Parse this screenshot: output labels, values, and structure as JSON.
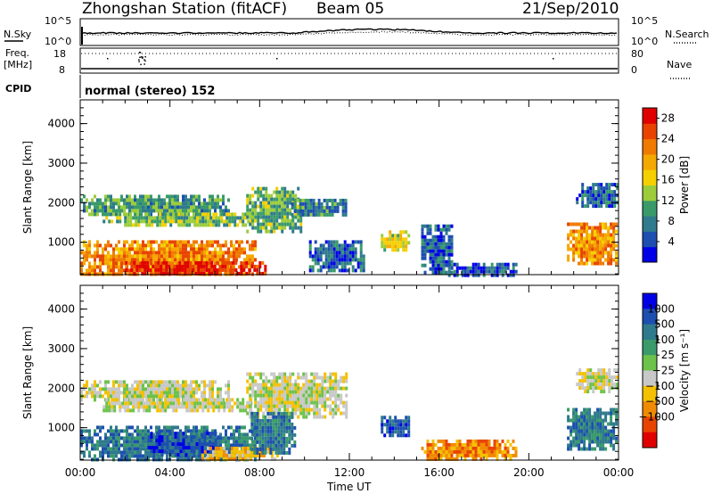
{
  "header": {
    "station_title": "Zhongshan Station (fitACF)",
    "beam": "Beam 05",
    "date": "21/Sep/2010"
  },
  "strip": {
    "nsky_label": "N.Sky",
    "nsearch_label": "N.Search",
    "nsky_ticks": [
      "10^5",
      "10^0"
    ],
    "nsearch_ticks": [
      "10^5",
      "10^0"
    ],
    "freq_label": "Freq.",
    "freq_unit": "[MHz]",
    "freq_ticks": [
      "18",
      "8"
    ],
    "nave_label": "Nave",
    "nave_ticks": [
      "80",
      "0"
    ],
    "cpid_label": "CPID",
    "cpid_text": "normal (stereo)  152"
  },
  "chart_data": [
    {
      "type": "heatmap",
      "name": "power",
      "ylabel": "Slant Range [km]",
      "xlabel": "",
      "x_ticks": [
        "00:00",
        "04:00",
        "08:00",
        "12:00",
        "16:00",
        "20:00",
        "00:00"
      ],
      "xlim_hours": [
        0,
        24
      ],
      "ylim_km": [
        180,
        4600
      ],
      "y_ticks": [
        1000,
        2000,
        3000,
        4000
      ],
      "colorbar": {
        "label": "Power [dB]",
        "ticks": [
          "4",
          "8",
          "12",
          "16",
          "20",
          "24",
          "28"
        ],
        "range": [
          0,
          30
        ],
        "colors": [
          "#0000e6",
          "#1d4fb0",
          "#2f7a8c",
          "#3a9a6a",
          "#9ccc3a",
          "#f5d000",
          "#f5a800",
          "#f07a00",
          "#e84400",
          "#e00000"
        ]
      },
      "regions": [
        {
          "t0": 0.0,
          "t1": 6.6,
          "r0": 1700,
          "r1": 2200,
          "level": 10
        },
        {
          "t0": 1.0,
          "t1": 7.6,
          "r0": 1450,
          "r1": 1750,
          "level": 13
        },
        {
          "t0": 0.0,
          "t1": 7.8,
          "r0": 200,
          "r1": 1050,
          "level": 22
        },
        {
          "t0": 2.0,
          "t1": 8.2,
          "r0": 200,
          "r1": 520,
          "level": 27
        },
        {
          "t0": 7.4,
          "t1": 9.9,
          "r0": 1300,
          "r1": 2400,
          "level": 11
        },
        {
          "t0": 9.4,
          "t1": 11.9,
          "r0": 1700,
          "r1": 2100,
          "level": 8
        },
        {
          "t0": 10.2,
          "t1": 12.7,
          "r0": 300,
          "r1": 1050,
          "level": 6
        },
        {
          "t0": 13.4,
          "t1": 14.7,
          "r0": 800,
          "r1": 1300,
          "level": 15
        },
        {
          "t0": 15.2,
          "t1": 16.6,
          "r0": 200,
          "r1": 1450,
          "level": 6
        },
        {
          "t0": 16.4,
          "t1": 19.4,
          "r0": 200,
          "r1": 480,
          "level": 5
        },
        {
          "t0": 21.7,
          "t1": 23.9,
          "r0": 500,
          "r1": 1500,
          "level": 21
        },
        {
          "t0": 22.1,
          "t1": 23.9,
          "r0": 1900,
          "r1": 2500,
          "level": 6
        }
      ]
    },
    {
      "type": "heatmap",
      "name": "velocity",
      "ylabel": "Slant Range [km]",
      "xlabel": "Time UT",
      "x_ticks": [
        "00:00",
        "04:00",
        "08:00",
        "12:00",
        "16:00",
        "20:00",
        "00:00"
      ],
      "xlim_hours": [
        0,
        24
      ],
      "ylim_km": [
        180,
        4600
      ],
      "y_ticks": [
        1000,
        2000,
        3000,
        4000
      ],
      "colorbar": {
        "label": "Velocity [m s⁻¹]",
        "ticks": [
          "1000",
          "500",
          "100",
          "25",
          "−25",
          "−100",
          "−500",
          "−1000"
        ],
        "colors": [
          "#0000e6",
          "#1d4fb0",
          "#2f7a8c",
          "#3a9a6a",
          "#6cc24a",
          "#c8c8c8",
          "#f5c000",
          "#f08a00",
          "#e84400",
          "#e00000"
        ]
      },
      "regions": [
        {
          "t0": 0.0,
          "t1": 6.6,
          "r0": 1700,
          "r1": 2200,
          "level": 5
        },
        {
          "t0": 1.0,
          "t1": 7.6,
          "r0": 1450,
          "r1": 1750,
          "level": 5
        },
        {
          "t0": 0.0,
          "t1": 7.8,
          "r0": 200,
          "r1": 1050,
          "level": 2
        },
        {
          "t0": 3.0,
          "t1": 6.2,
          "r0": 300,
          "r1": 900,
          "level": 1
        },
        {
          "t0": 5.4,
          "t1": 8.8,
          "r0": 200,
          "r1": 520,
          "level": 6
        },
        {
          "t0": 7.4,
          "t1": 11.9,
          "r0": 1300,
          "r1": 2400,
          "level": 5
        },
        {
          "t0": 7.6,
          "t1": 9.6,
          "r0": 400,
          "r1": 1400,
          "level": 2
        },
        {
          "t0": 13.4,
          "t1": 14.7,
          "r0": 800,
          "r1": 1300,
          "level": 1
        },
        {
          "t0": 15.2,
          "t1": 19.4,
          "r0": 200,
          "r1": 700,
          "level": 7
        },
        {
          "t0": 21.7,
          "t1": 23.9,
          "r0": 500,
          "r1": 1500,
          "level": 2
        },
        {
          "t0": 22.1,
          "t1": 23.9,
          "r0": 1900,
          "r1": 2500,
          "level": 5
        }
      ]
    }
  ]
}
